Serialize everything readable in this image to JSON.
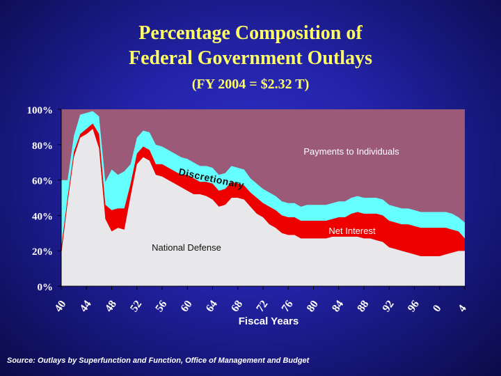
{
  "title_line1": "Percentage Composition of",
  "title_line2": "Federal Government Outlays",
  "subtitle": "(FY 2004 = $2.32 T)",
  "source": "Source:  Outlays by Superfunction and Function, Office of Management and Budget",
  "colors": {
    "background": "#2323a8",
    "title": "#ffff66",
    "national_defense": "#e8e8ea",
    "net_interest": "#ee0000",
    "discretionary": "#66ffff",
    "payments_to_individuals": "#9a5a78"
  },
  "chart_data": {
    "type": "area",
    "stacked": true,
    "xlabel": "Fiscal Years",
    "ylabel": "",
    "ylim": [
      0,
      100
    ],
    "yticks": [
      "0%",
      "20%",
      "40%",
      "60%",
      "80%",
      "100%"
    ],
    "xticks": [
      "40",
      "44",
      "48",
      "52",
      "56",
      "60",
      "64",
      "68",
      "72",
      "76",
      "80",
      "84",
      "88",
      "92",
      "96",
      "0",
      "4"
    ],
    "x": [
      "1940",
      "1941",
      "1942",
      "1943",
      "1944",
      "1945",
      "1946",
      "1947",
      "1948",
      "1949",
      "1950",
      "1951",
      "1952",
      "1953",
      "1954",
      "1955",
      "1956",
      "1957",
      "1958",
      "1959",
      "1960",
      "1961",
      "1962",
      "1963",
      "1964",
      "1965",
      "1966",
      "1967",
      "1968",
      "1969",
      "1970",
      "1971",
      "1972",
      "1973",
      "1974",
      "1975",
      "1976",
      "1977",
      "1978",
      "1979",
      "1980",
      "1981",
      "1982",
      "1983",
      "1984",
      "1985",
      "1986",
      "1987",
      "1988",
      "1989",
      "1990",
      "1991",
      "1992",
      "1993",
      "1994",
      "1995",
      "1996",
      "1997",
      "1998",
      "1999",
      "2000",
      "2001",
      "2002",
      "2003",
      "2004"
    ],
    "series": [
      {
        "name": "National Defense",
        "values": [
          18,
          47,
          73,
          84,
          86,
          89,
          78,
          38,
          31,
          33,
          32,
          51,
          69,
          73,
          71,
          63,
          62,
          60,
          58,
          56,
          54,
          52,
          52,
          51,
          49,
          45,
          46,
          50,
          50,
          49,
          45,
          41,
          39,
          35,
          33,
          30,
          29,
          29,
          27,
          27,
          27,
          27,
          27,
          28,
          28,
          28,
          28,
          28,
          27,
          27,
          26,
          25,
          22,
          21,
          20,
          19,
          18,
          17,
          17,
          17,
          17,
          18,
          19,
          20,
          20
        ]
      },
      {
        "name": "Net Interest",
        "values": [
          4,
          3,
          3,
          2,
          3,
          3,
          8,
          8,
          12,
          11,
          12,
          7,
          6,
          6,
          6,
          6,
          7,
          7,
          7,
          7,
          9,
          9,
          7,
          8,
          9,
          9,
          9,
          9,
          8,
          8,
          8,
          9,
          8,
          10,
          10,
          10,
          10,
          10,
          10,
          10,
          10,
          10,
          10,
          10,
          11,
          11,
          13,
          14,
          14,
          14,
          15,
          15,
          15,
          15,
          15,
          16,
          16,
          16,
          16,
          16,
          16,
          15,
          13,
          11,
          7
        ]
      },
      {
        "name": "Discretionary",
        "values": [
          38,
          10,
          9,
          11,
          9,
          7,
          10,
          13,
          23,
          19,
          21,
          11,
          9,
          9,
          10,
          11,
          10,
          10,
          10,
          10,
          9,
          9,
          9,
          9,
          9,
          9,
          9,
          9,
          9,
          9,
          8,
          8,
          8,
          8,
          8,
          8,
          8,
          8,
          8,
          9,
          9,
          9,
          9,
          9,
          9,
          9,
          9,
          9,
          9,
          9,
          9,
          9,
          9,
          9,
          9,
          9,
          9,
          9,
          9,
          9,
          9,
          9,
          9,
          8,
          9
        ]
      },
      {
        "name": "Payments to Individuals",
        "values": [
          40,
          40,
          15,
          3,
          2,
          1,
          4,
          41,
          34,
          37,
          35,
          31,
          16,
          12,
          13,
          20,
          21,
          23,
          25,
          27,
          28,
          30,
          32,
          32,
          33,
          37,
          36,
          32,
          33,
          34,
          39,
          42,
          45,
          47,
          49,
          52,
          53,
          53,
          55,
          54,
          54,
          54,
          54,
          53,
          52,
          52,
          50,
          49,
          50,
          50,
          50,
          51,
          54,
          55,
          56,
          56,
          57,
          58,
          58,
          58,
          58,
          58,
          59,
          61,
          64
        ]
      }
    ],
    "annotations": [
      "Payments to Individuals",
      "Discretionary",
      "Net Interest",
      "National Defense"
    ]
  }
}
